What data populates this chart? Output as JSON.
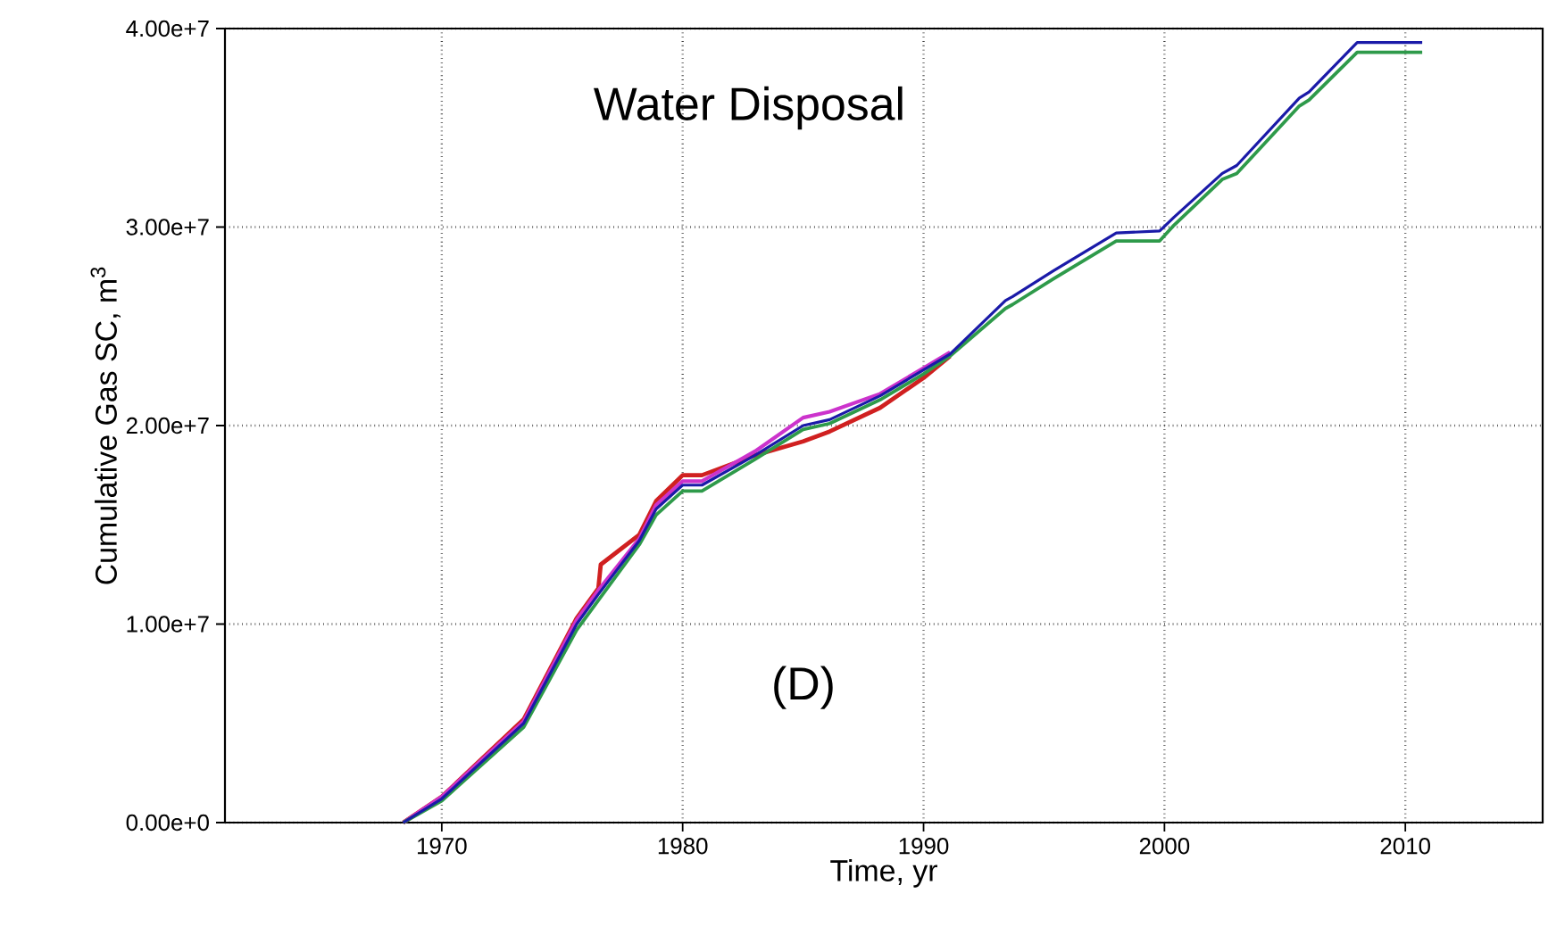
{
  "chart_data": {
    "type": "line",
    "title": "Water Disposal",
    "xlabel": "Time, yr",
    "ylabel": "Cumulative Gas SC, m$^{3}$",
    "annotations": [
      "(D)"
    ],
    "xlim": [
      1961,
      2015.7
    ],
    "xticks": [
      1970,
      1980,
      1990,
      2000,
      2010
    ],
    "ylim": [
      0,
      40000000
    ],
    "yticks": [
      {
        "value": 0,
        "label": "0.00e+0"
      },
      {
        "value": 10000000,
        "label": "1.00e+7"
      },
      {
        "value": 20000000,
        "label": "2.00e+7"
      },
      {
        "value": 30000000,
        "label": "3.00e+7"
      },
      {
        "value": 40000000,
        "label": "4.00e+7"
      }
    ],
    "grid": true,
    "line_style": "solid",
    "marker": "none",
    "series": [
      {
        "color": "#d02020",
        "x": [
          1968.4,
          1970,
          1973.4,
          1975.6,
          1976.5,
          1976.6,
          1978.2,
          1978.9,
          1980,
          1980.8,
          1983,
          1985,
          1986.1,
          1988.2,
          1990,
          1991.1
        ],
        "values": [
          0,
          1300000,
          5200000,
          10300000,
          11800000,
          13000000,
          14500000,
          16200000,
          17500000,
          17500000,
          18500000,
          19200000,
          19700000,
          20900000,
          22400000,
          23500000
        ]
      },
      {
        "color": "#cc33cc",
        "x": [
          1968.4,
          1970,
          1973.4,
          1975.6,
          1976.5,
          1978.2,
          1978.9,
          1980,
          1980.8,
          1983,
          1985,
          1986.1,
          1988.2,
          1990,
          1991.1
        ],
        "values": [
          0,
          1300000,
          5100000,
          10200000,
          11700000,
          14300000,
          16000000,
          17200000,
          17200000,
          18700000,
          20400000,
          20700000,
          21600000,
          22900000,
          23700000
        ]
      },
      {
        "color": "#2e9a4a",
        "x": [
          1968.4,
          1970,
          1973.4,
          1975.6,
          1976.5,
          1978.2,
          1978.9,
          1980,
          1980.8,
          1983,
          1985,
          1986.1,
          1988.2,
          1990,
          1991.1,
          1993.4,
          1993.7,
          1995.4,
          1998,
          1999.8,
          2000.4,
          2002.4,
          2003,
          2005.6,
          2006,
          2008,
          2010.7
        ],
        "values": [
          0,
          1100000,
          4800000,
          9700000,
          11200000,
          14000000,
          15500000,
          16700000,
          16700000,
          18300000,
          19800000,
          20100000,
          21300000,
          22600000,
          23500000,
          25900000,
          26100000,
          27400000,
          29300000,
          29300000,
          30100000,
          32400000,
          32700000,
          36100000,
          36400000,
          38800000,
          38800000
        ]
      },
      {
        "color": "#1a1aa8",
        "x": [
          1968.4,
          1970,
          1973.4,
          1975.6,
          1976.5,
          1978.2,
          1978.9,
          1980,
          1980.8,
          1983,
          1985,
          1986.1,
          1988.2,
          1990,
          1991.1,
          1993.4,
          1993.7,
          1995.4,
          1998,
          1999.8,
          2000.4,
          2002.4,
          2003,
          2005.6,
          2006,
          2008,
          2010.7
        ],
        "values": [
          0,
          1200000,
          5000000,
          10000000,
          11500000,
          14200000,
          15800000,
          17000000,
          17000000,
          18500000,
          20000000,
          20300000,
          21500000,
          22800000,
          23600000,
          26300000,
          26500000,
          27800000,
          29700000,
          29800000,
          30500000,
          32700000,
          33100000,
          36500000,
          36800000,
          39300000,
          39300000
        ]
      }
    ]
  }
}
